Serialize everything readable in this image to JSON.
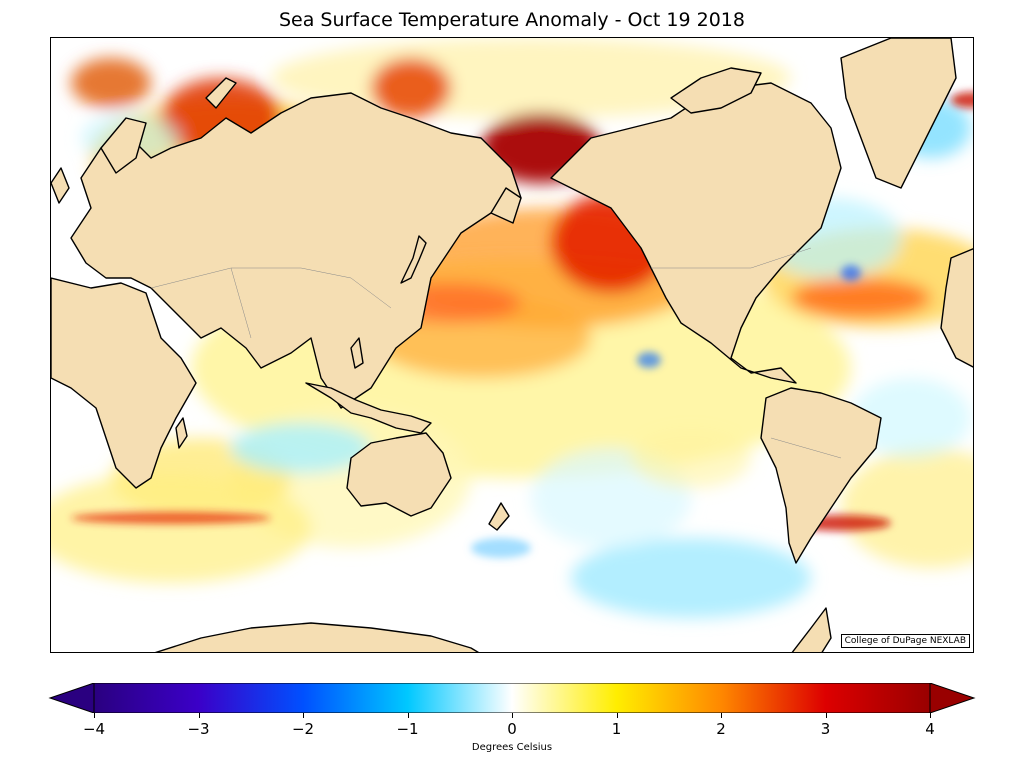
{
  "title": "Sea Surface Temperature Anomaly - Oct 19 2018",
  "credit": "College of DuPage NEXLAB",
  "colorbar": {
    "label": "Degrees Celsius",
    "min": -4,
    "max": 4,
    "ticks": [
      "−4",
      "−3",
      "−2",
      "−1",
      "0",
      "1",
      "2",
      "3",
      "4"
    ],
    "colors": [
      "#2a0080",
      "#0050ff",
      "#00c8ff",
      "#ffffff",
      "#ffee00",
      "#ff6600",
      "#b30000"
    ]
  },
  "map_colors": {
    "land": "#f5deb3",
    "coast": "#000000",
    "ocean": "#ffffff"
  }
}
